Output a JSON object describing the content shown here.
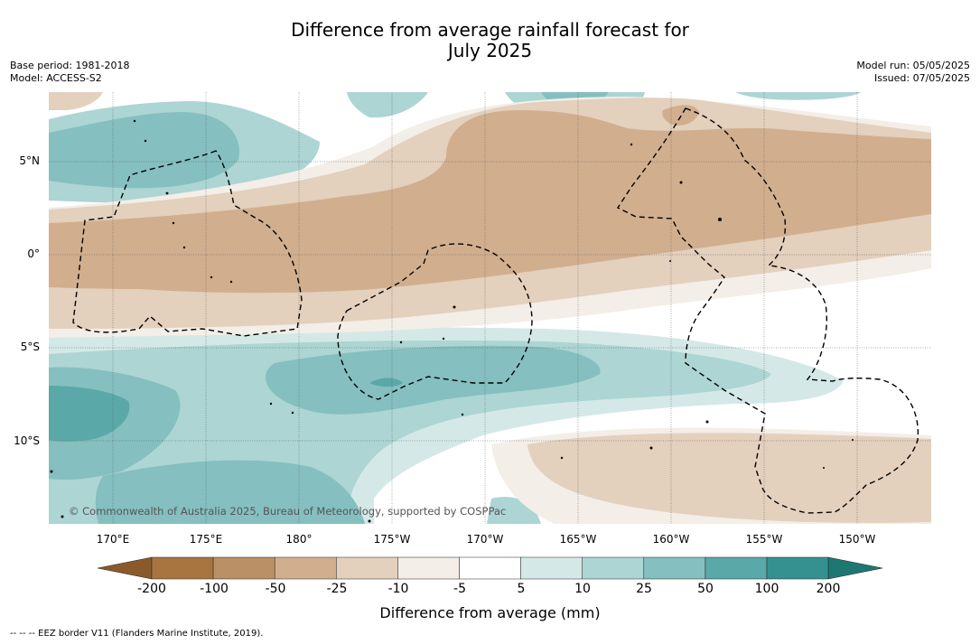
{
  "title_line1": "Difference from average rainfall forecast for",
  "title_line2": "July 2025",
  "meta_left": {
    "base_period": "Base period: 1981-2018",
    "model": "Model: ACCESS-S2"
  },
  "meta_right": {
    "model_run": "Model run: 05/05/2025",
    "issued": "Issued: 07/05/2025"
  },
  "lat_labels": [
    "5°N",
    "0°",
    "5°S",
    "10°S"
  ],
  "lon_labels": [
    "170°E",
    "175°E",
    "180°",
    "175°W",
    "170°W",
    "165°W",
    "160°W",
    "155°W",
    "150°W"
  ],
  "copyright": "© Commonwealth of Australia 2025, Bureau of Meteorology, supported by COSPPac",
  "colorbar": {
    "ticks": [
      "-200",
      "-100",
      "-50",
      "-25",
      "-10",
      "-5",
      "5",
      "10",
      "25",
      "50",
      "100",
      "200"
    ],
    "colors": [
      "#8b5a2b",
      "#a8743f",
      "#ba9066",
      "#d1ae8e",
      "#e3d0bd",
      "#f3eee7",
      "#ffffff",
      "#d4e9e7",
      "#acd5d3",
      "#85bfbf",
      "#5aa8a7",
      "#35918f",
      "#1f7774"
    ],
    "label": "Difference from average (mm)"
  },
  "footnote": "--  --  -- EEZ border V11 (Flanders Marine Institute, 2019)."
}
